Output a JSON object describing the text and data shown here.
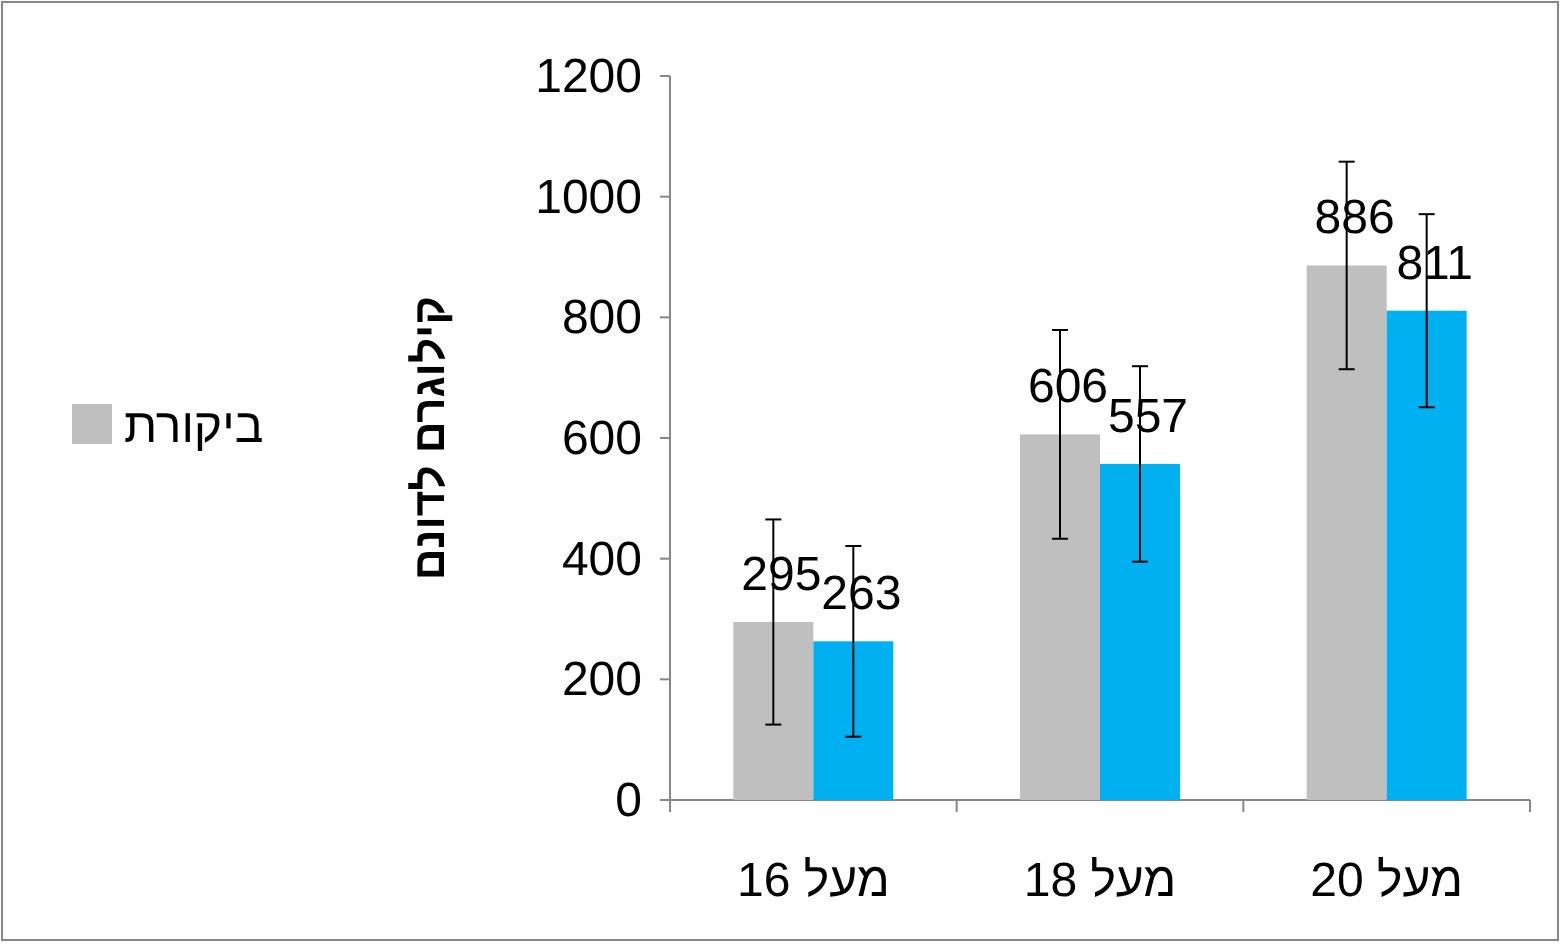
{
  "chart_data": {
    "type": "bar",
    "ylabel": "קילוגרם לדונם",
    "categories": [
      "מעל 16",
      "מעל 18",
      "מעל 20"
    ],
    "series": [
      {
        "name": "ביקורת",
        "color": "#bfbfbf",
        "values": [
          295,
          606,
          886
        ],
        "errors": [
          170,
          173,
          172
        ]
      },
      {
        "color": "#00b0f0",
        "values": [
          263,
          557,
          811
        ],
        "errors": [
          158,
          162,
          160
        ]
      }
    ],
    "ylim": [
      0,
      1200
    ],
    "yticks": [
      0,
      200,
      400,
      600,
      800,
      1000,
      1200
    ],
    "data_labels": true,
    "legend": "left",
    "grid": false
  }
}
